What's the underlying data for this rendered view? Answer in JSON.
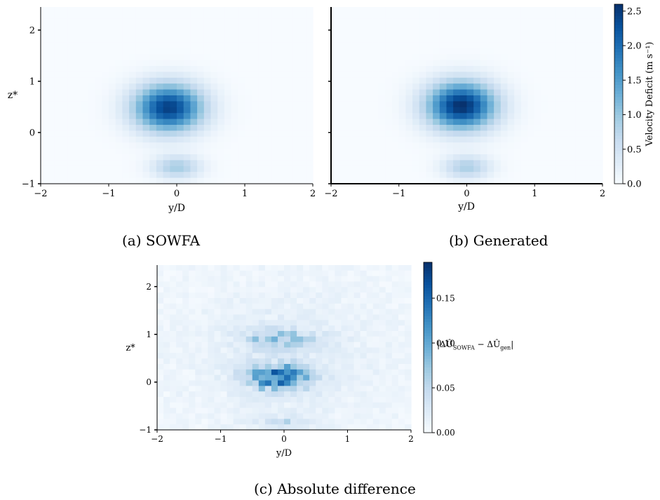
{
  "captions": {
    "a": "(a) SOWFA",
    "b": "(b) Generated",
    "c": "(c) Absolute difference"
  },
  "colors": {
    "colormap": [
      "#f7fbff",
      "#deebf7",
      "#c6dbef",
      "#9ecae1",
      "#6baed6",
      "#4292c6",
      "#2171b5",
      "#08519c",
      "#08306b"
    ]
  },
  "chart_data": [
    {
      "id": "a",
      "type": "heatmap",
      "title": "",
      "xlabel": "y/D",
      "ylabel": "z*",
      "xlim": [
        -2,
        2
      ],
      "ylim": [
        -1,
        2.45
      ],
      "xticks": [
        "−2",
        "−1",
        "0",
        "1",
        "2"
      ],
      "yticks": [
        "−1",
        "0",
        "1",
        "2"
      ],
      "grid": false,
      "vmax": 2.6,
      "blobs": [
        {
          "center": [
            -0.12,
            0.48
          ],
          "sigma": [
            0.36,
            0.33
          ],
          "peak": 2.45
        },
        {
          "center": [
            0.0,
            -0.68
          ],
          "sigma": [
            0.25,
            0.16
          ],
          "peak": 0.9
        }
      ]
    },
    {
      "id": "b",
      "type": "heatmap",
      "title": "",
      "xlabel": "y/D",
      "ylabel": "",
      "xlim": [
        -2,
        2
      ],
      "ylim": [
        -1,
        2.45
      ],
      "xticks": [
        "−2",
        "−1",
        "0",
        "1",
        "2"
      ],
      "grid": false,
      "vmax": 2.6,
      "blobs": [
        {
          "center": [
            -0.08,
            0.52
          ],
          "sigma": [
            0.36,
            0.33
          ],
          "peak": 2.6
        },
        {
          "center": [
            0.0,
            -0.68
          ],
          "sigma": [
            0.25,
            0.16
          ],
          "peak": 0.85
        }
      ],
      "colorbar": {
        "label": "Velocity Deficit (m s⁻¹)",
        "range": [
          0,
          2.6
        ],
        "ticks": [
          "0.0",
          "0.5",
          "1.0",
          "1.5",
          "2.0",
          "2.5"
        ]
      }
    },
    {
      "id": "c",
      "type": "heatmap",
      "title": "",
      "xlabel": "y/D",
      "ylabel": "z*",
      "xlim": [
        -2,
        2
      ],
      "ylim": [
        -1,
        2.45
      ],
      "xticks": [
        "−2",
        "−1",
        "0",
        "1",
        "2"
      ],
      "yticks": [
        "−1",
        "0",
        "1",
        "2"
      ],
      "grid": false,
      "vmax": 0.19,
      "blobs": [
        {
          "center": [
            -0.1,
            0.1
          ],
          "sigma": [
            0.32,
            0.18
          ],
          "peak": 0.13
        },
        {
          "center": [
            -0.05,
            0.9
          ],
          "sigma": [
            0.4,
            0.14
          ],
          "peak": 0.06
        },
        {
          "center": [
            0.0,
            -0.85
          ],
          "sigma": [
            0.3,
            0.1
          ],
          "peak": 0.03
        },
        {
          "center": [
            0.0,
            0.5
          ],
          "sigma": [
            1.0,
            1.0
          ],
          "peak": 0.015
        }
      ],
      "colorbar": {
        "label": "|ΔÛ_SOWFA − ΔÛ_gen|",
        "range": [
          0,
          0.19
        ],
        "ticks": [
          "0.00",
          "0.05",
          "0.10",
          "0.15"
        ]
      }
    }
  ]
}
